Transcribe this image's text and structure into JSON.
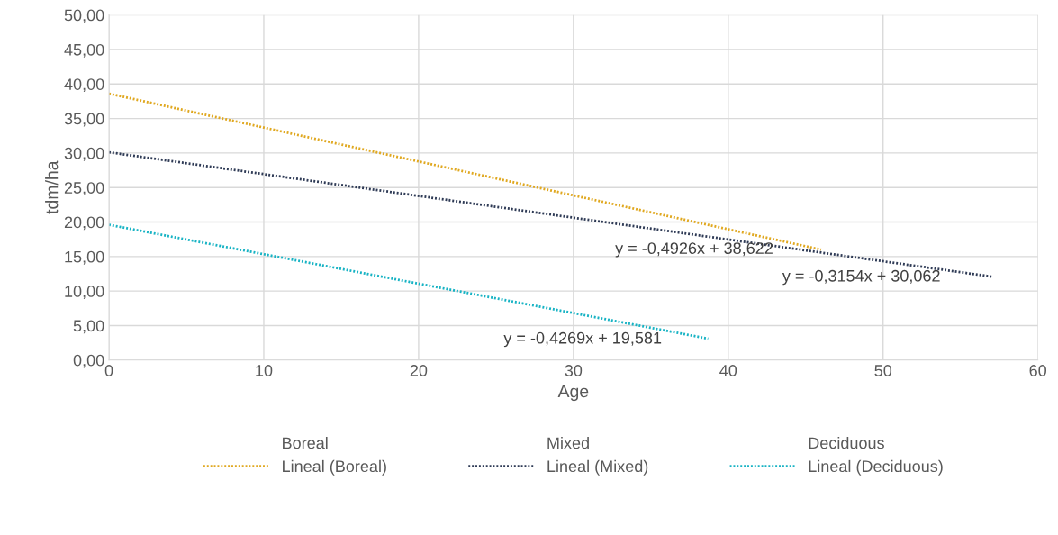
{
  "chart_data": {
    "type": "line",
    "xlabel": "Age",
    "ylabel": "tdm/ha",
    "xlim": [
      0,
      60
    ],
    "xticks": [
      0,
      10,
      20,
      30,
      40,
      50,
      60
    ],
    "ylim": [
      0,
      50
    ],
    "yticks": [
      {
        "value": 0,
        "label": "0,00"
      },
      {
        "value": 5,
        "label": "5,00"
      },
      {
        "value": 10,
        "label": "10,00"
      },
      {
        "value": 15,
        "label": "15,00"
      },
      {
        "value": 20,
        "label": "20,00"
      },
      {
        "value": 25,
        "label": "25,00"
      },
      {
        "value": 30,
        "label": "30,00"
      },
      {
        "value": 35,
        "label": "35,00"
      },
      {
        "value": 40,
        "label": "40,00"
      },
      {
        "value": 45,
        "label": "45,00"
      },
      {
        "value": 50,
        "label": "50,00"
      }
    ],
    "grid": true,
    "legend": "bottom",
    "marker": "none",
    "series": [
      {
        "name": "Boreal",
        "type": "scatter"
      },
      {
        "name": "Lineal (Boreal)",
        "line_style": "dotted",
        "color": "#e0a820",
        "x": [
          0,
          46
        ],
        "values": [
          38.6,
          16.0
        ]
      },
      {
        "name": "Mixed",
        "type": "scatter"
      },
      {
        "name": "Lineal (Mixed)",
        "line_style": "dotted",
        "color": "#2e3a55",
        "x": [
          0,
          57
        ],
        "values": [
          30.1,
          12.1
        ]
      },
      {
        "name": "Deciduous",
        "type": "scatter"
      },
      {
        "name": "Lineal (Deciduous)",
        "line_style": "dotted",
        "color": "#17b3c4",
        "x": [
          0,
          38.7
        ],
        "values": [
          19.6,
          3.1
        ]
      }
    ],
    "annotations": [
      "y = -0,4926x + 38,622",
      "y = -0,3154x + 30,062",
      "y = -0,4269x + 19,581"
    ]
  }
}
